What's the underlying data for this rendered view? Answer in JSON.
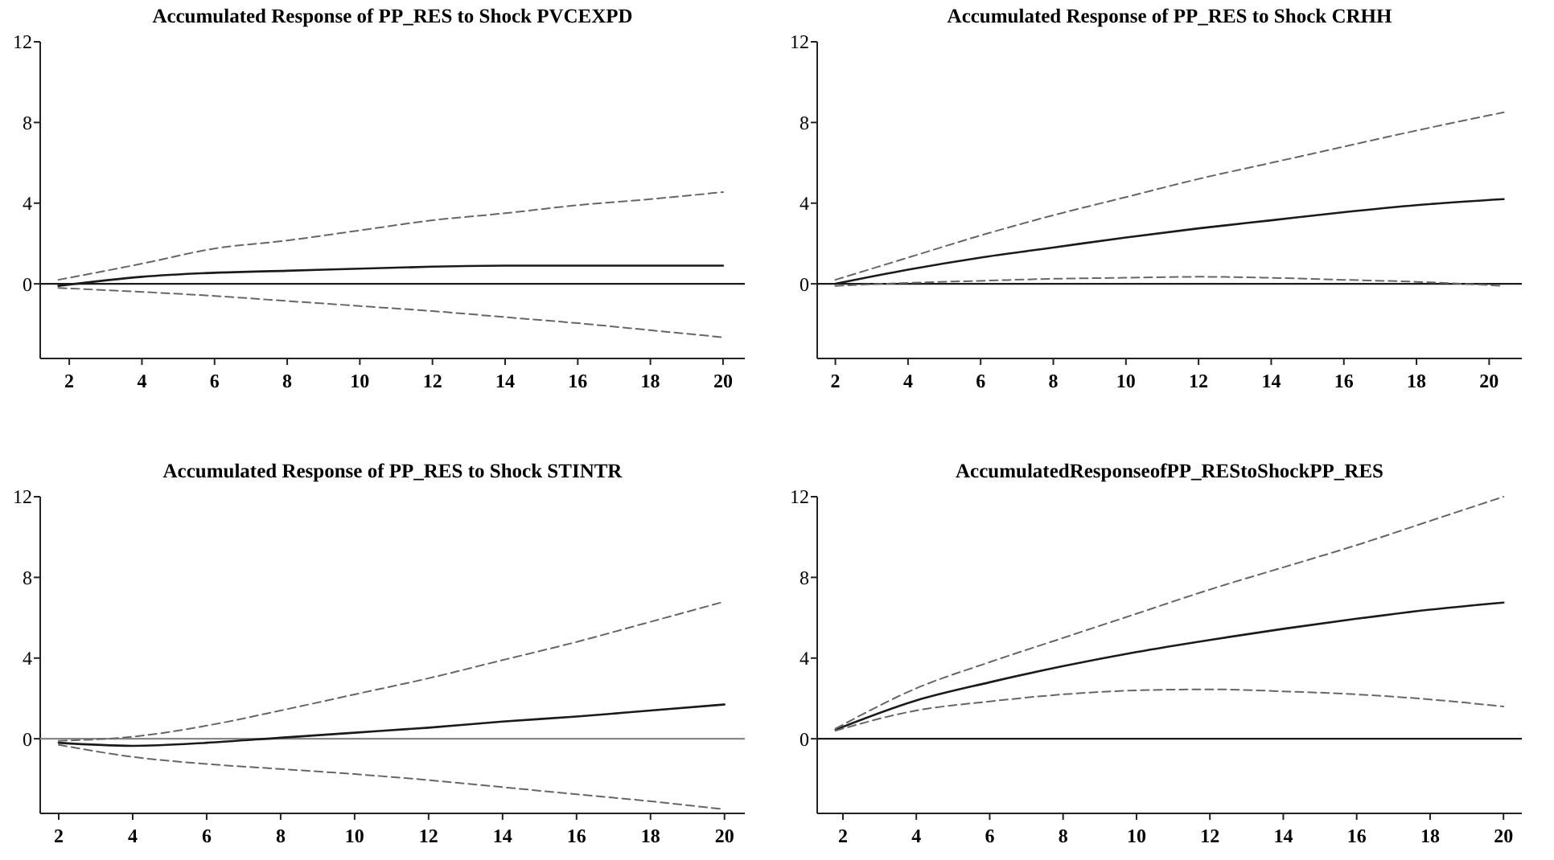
{
  "chart_data": [
    {
      "type": "line",
      "title": "Accumulated Response of PP_RES to Shock PVCEXPD",
      "x": [
        1.7,
        4,
        6,
        8,
        10,
        12,
        14,
        16,
        18,
        20
      ],
      "xlim": [
        1.2,
        20.6
      ],
      "xticks": [
        2,
        4,
        6,
        8,
        10,
        12,
        14,
        16,
        18,
        20
      ],
      "ylim": [
        -3.7,
        12
      ],
      "yticks": [
        0,
        4,
        8,
        12
      ],
      "series": [
        {
          "color": "#1a1a1a",
          "line_style": "solid",
          "values": [
            -0.1,
            0.35,
            0.55,
            0.65,
            0.75,
            0.85,
            0.9,
            0.9,
            0.9,
            0.9
          ]
        },
        {
          "color": "#666666",
          "line_style": "dashed",
          "values": [
            0.2,
            1.0,
            1.75,
            2.15,
            2.65,
            3.15,
            3.5,
            3.9,
            4.2,
            4.55
          ]
        },
        {
          "color": "#666666",
          "line_style": "dashed",
          "values": [
            -0.2,
            -0.4,
            -0.6,
            -0.85,
            -1.1,
            -1.35,
            -1.65,
            -1.95,
            -2.3,
            -2.65
          ]
        }
      ],
      "ref_lines": [
        {
          "axis": "y",
          "value": 0,
          "color": "#1a1a1a"
        }
      ]
    },
    {
      "type": "line",
      "title": "Accumulated Response of PP_RES to Shock CRHH",
      "x": [
        2,
        4,
        6,
        8,
        10,
        12,
        14,
        16,
        18,
        20.4
      ],
      "xlim": [
        1.5,
        20.9
      ],
      "xticks": [
        2,
        4,
        6,
        8,
        10,
        12,
        14,
        16,
        18,
        20
      ],
      "ylim": [
        -3.7,
        12
      ],
      "yticks": [
        0,
        4,
        8,
        12
      ],
      "series": [
        {
          "color": "#1a1a1a",
          "line_style": "solid",
          "values": [
            0.0,
            0.7,
            1.3,
            1.8,
            2.3,
            2.75,
            3.15,
            3.55,
            3.9,
            4.2
          ]
        },
        {
          "color": "#666666",
          "line_style": "dashed",
          "values": [
            0.2,
            1.3,
            2.4,
            3.4,
            4.3,
            5.2,
            6.0,
            6.8,
            7.6,
            8.5
          ]
        },
        {
          "color": "#666666",
          "line_style": "dashed",
          "values": [
            -0.1,
            0.05,
            0.15,
            0.25,
            0.3,
            0.35,
            0.3,
            0.2,
            0.1,
            -0.1
          ]
        }
      ],
      "ref_lines": [
        {
          "axis": "y",
          "value": 0,
          "color": "#1a1a1a"
        }
      ]
    },
    {
      "type": "line",
      "title": "Accumulated Response of PP_RES to Shock STINTR",
      "x": [
        2,
        4,
        6,
        8,
        10,
        12,
        14,
        16,
        18,
        20
      ],
      "xlim": [
        1.5,
        20.55
      ],
      "xticks": [
        2,
        4,
        6,
        8,
        10,
        12,
        14,
        16,
        18,
        20
      ],
      "ylim": [
        -3.7,
        12
      ],
      "yticks": [
        0,
        4,
        8,
        12
      ],
      "series": [
        {
          "color": "#1a1a1a",
          "line_style": "solid",
          "values": [
            -0.2,
            -0.35,
            -0.2,
            0.05,
            0.3,
            0.55,
            0.85,
            1.1,
            1.4,
            1.7
          ]
        },
        {
          "color": "#666666",
          "line_style": "dashed",
          "values": [
            -0.1,
            0.1,
            0.65,
            1.4,
            2.2,
            3.0,
            3.9,
            4.8,
            5.8,
            6.8
          ]
        },
        {
          "color": "#666666",
          "line_style": "dashed",
          "values": [
            -0.3,
            -0.9,
            -1.25,
            -1.5,
            -1.75,
            -2.05,
            -2.4,
            -2.75,
            -3.1,
            -3.5
          ]
        }
      ],
      "ref_lines": [
        {
          "axis": "y",
          "value": 0,
          "color": "#888888"
        }
      ]
    },
    {
      "type": "line",
      "title": "AccumulatedResponseofPP_REStoShockPP_RES",
      "x": [
        1.8,
        4,
        6,
        8,
        10,
        12,
        14,
        16,
        18,
        20
      ],
      "xlim": [
        1.3,
        20.5
      ],
      "xticks": [
        2,
        4,
        6,
        8,
        10,
        12,
        14,
        16,
        18,
        20
      ],
      "ylim": [
        -3.7,
        12
      ],
      "yticks": [
        0,
        4,
        8,
        12
      ],
      "series": [
        {
          "color": "#1a1a1a",
          "line_style": "solid",
          "values": [
            0.45,
            1.9,
            2.8,
            3.6,
            4.3,
            4.9,
            5.45,
            5.95,
            6.4,
            6.75
          ]
        },
        {
          "color": "#666666",
          "line_style": "dashed",
          "values": [
            0.5,
            2.5,
            3.8,
            5.0,
            6.2,
            7.4,
            8.5,
            9.6,
            10.8,
            12
          ]
        },
        {
          "color": "#666666",
          "line_style": "dashed",
          "values": [
            0.4,
            1.4,
            1.85,
            2.2,
            2.4,
            2.45,
            2.35,
            2.2,
            1.95,
            1.6
          ]
        }
      ],
      "ref_lines": [
        {
          "axis": "y",
          "value": 0,
          "color": "#1a1a1a"
        }
      ]
    }
  ]
}
